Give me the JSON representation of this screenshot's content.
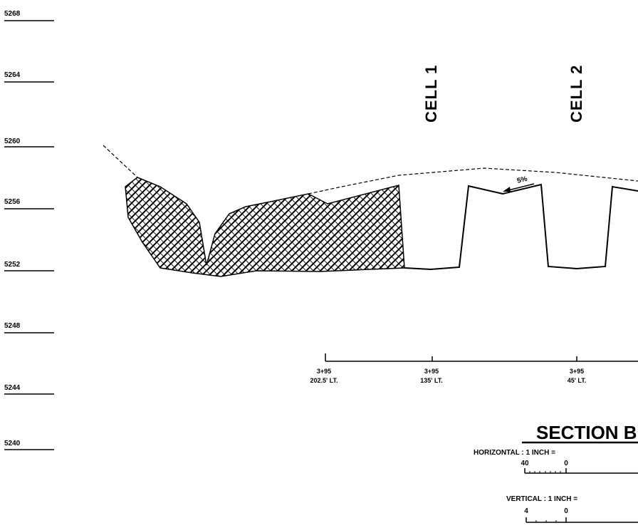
{
  "elevations": [
    "5268",
    "5264",
    "5260",
    "5256",
    "5252",
    "5248",
    "5244",
    "5240"
  ],
  "cells": [
    {
      "label": "CELL 1"
    },
    {
      "label": "CELL 2"
    }
  ],
  "slope_label": "5%",
  "stations": [
    {
      "station": "3+95",
      "offset": "202.5' LT."
    },
    {
      "station": "3+95",
      "offset": "135' LT."
    },
    {
      "station": "3+95",
      "offset": "45' LT."
    }
  ],
  "section_title": "SECTION B",
  "horizontal_scale": {
    "label": "HORIZONTAL : 1 INCH =",
    "tick_left": "40",
    "tick_zero": "0"
  },
  "vertical_scale": {
    "label": "VERTICAL : 1 INCH =",
    "tick_left": "4",
    "tick_zero": "0"
  },
  "colors": {
    "ink": "#000000",
    "paper": "#ffffff"
  }
}
